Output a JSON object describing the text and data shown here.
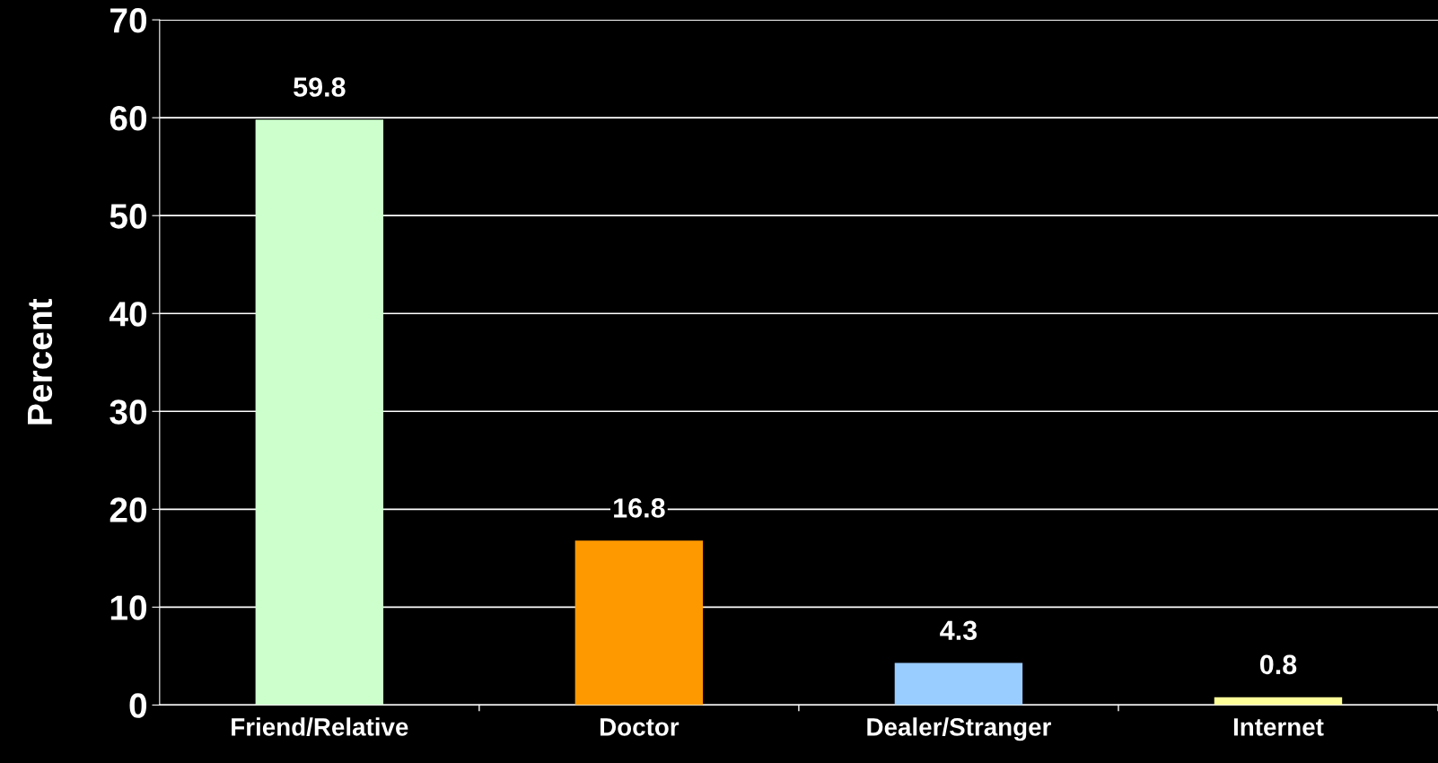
{
  "chart_data": {
    "type": "bar",
    "ylabel": "Percent",
    "categories": [
      "Friend/Relative",
      "Doctor",
      "Dealer/Stranger",
      "Internet"
    ],
    "values": [
      59.8,
      16.8,
      4.3,
      0.8
    ],
    "colors": [
      "#ccffcc",
      "#ff9900",
      "#99ccff",
      "#ffff99"
    ],
    "ylim": [
      0,
      70
    ],
    "yticks": [
      0,
      10,
      20,
      30,
      40,
      50,
      60,
      70
    ],
    "grid": "y",
    "data_labels": true
  }
}
